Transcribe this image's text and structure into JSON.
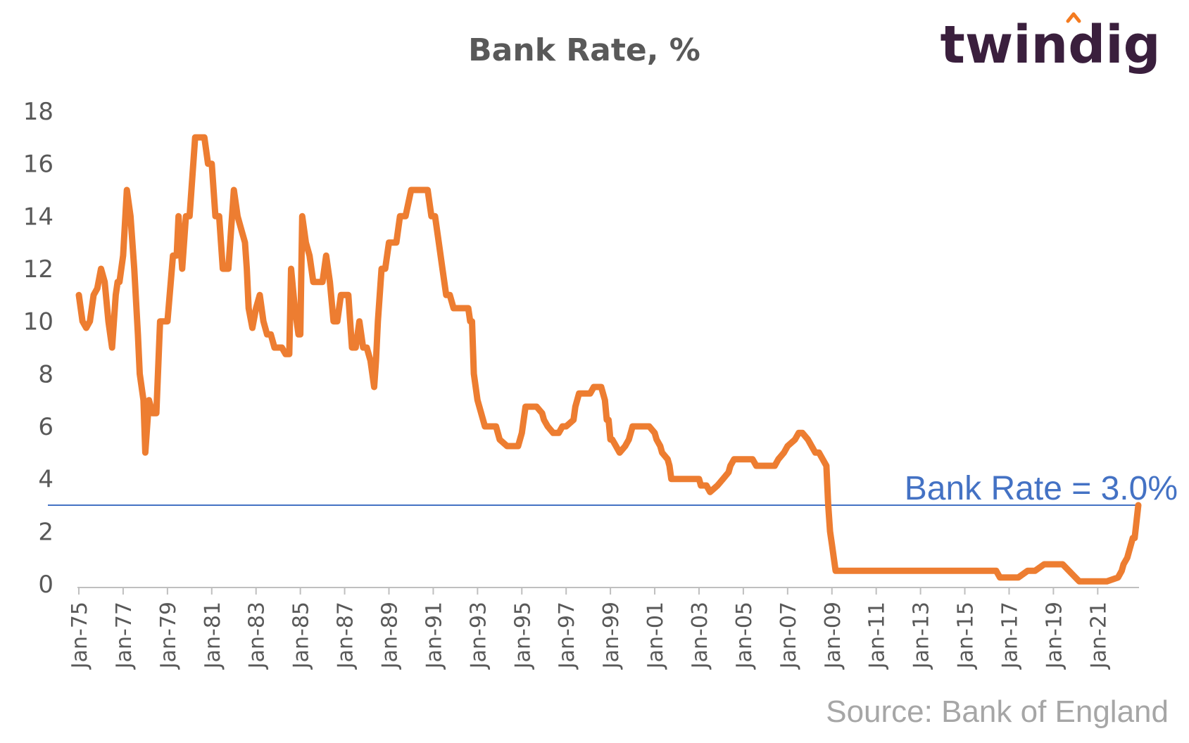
{
  "chart_data": {
    "type": "line",
    "title": "Bank Rate, %",
    "xlabel": "",
    "ylabel": "",
    "ylim": [
      0,
      18
    ],
    "yticks": [
      0,
      2,
      4,
      6,
      8,
      10,
      12,
      14,
      16,
      18
    ],
    "xtick_labels": [
      "Jan-75",
      "Jan-77",
      "Jan-79",
      "Jan-81",
      "Jan-83",
      "Jan-85",
      "Jan-87",
      "Jan-89",
      "Jan-91",
      "Jan-93",
      "Jan-95",
      "Jan-97",
      "Jan-99",
      "Jan-01",
      "Jan-03",
      "Jan-05",
      "Jan-07",
      "Jan-09",
      "Jan-11",
      "Jan-13",
      "Jan-15",
      "Jan-17",
      "Jan-19",
      "Jan-21"
    ],
    "xlim": [
      "1975-01",
      "2022-11"
    ],
    "grid": false,
    "line_color": "#ed7d31",
    "reference_line": {
      "value": 3.0,
      "label": "Bank Rate = 3.0%",
      "color": "#4472c4"
    },
    "series": [
      {
        "name": "",
        "x": [
          "1975-01",
          "1975-03",
          "1975-05",
          "1975-07",
          "1975-09",
          "1975-11",
          "1976-01",
          "1976-03",
          "1976-05",
          "1976-07",
          "1976-09",
          "1976-10",
          "1976-11",
          "1977-01",
          "1977-03",
          "1977-05",
          "1977-07",
          "1977-09",
          "1977-10",
          "1977-12",
          "1978-01",
          "1978-03",
          "1978-05",
          "1978-07",
          "1978-09",
          "1978-11",
          "1979-01",
          "1979-04",
          "1979-06",
          "1979-07",
          "1979-09",
          "1979-11",
          "1980-01",
          "1980-04",
          "1980-07",
          "1980-09",
          "1980-11",
          "1981-01",
          "1981-03",
          "1981-05",
          "1981-07",
          "1981-09",
          "1981-10",
          "1981-11",
          "1982-01",
          "1982-03",
          "1982-05",
          "1982-07",
          "1982-08",
          "1982-09",
          "1982-11",
          "1983-01",
          "1983-03",
          "1983-05",
          "1983-07",
          "1983-09",
          "1983-11",
          "1984-01",
          "1984-03",
          "1984-05",
          "1984-07",
          "1984-08",
          "1984-10",
          "1984-12",
          "1985-01",
          "1985-02",
          "1985-04",
          "1985-06",
          "1985-08",
          "1985-10",
          "1985-12",
          "1986-01",
          "1986-03",
          "1986-05",
          "1986-07",
          "1986-09",
          "1986-11",
          "1987-01",
          "1987-03",
          "1987-05",
          "1987-07",
          "1987-09",
          "1987-11",
          "1988-01",
          "1988-03",
          "1988-05",
          "1988-06",
          "1988-07",
          "1988-09",
          "1988-11",
          "1989-01",
          "1989-05",
          "1989-07",
          "1989-10",
          "1990-01",
          "1990-04",
          "1990-07",
          "1990-10",
          "1990-12",
          "1991-02",
          "1991-04",
          "1991-06",
          "1991-08",
          "1991-10",
          "1991-12",
          "1992-03",
          "1992-06",
          "1992-08",
          "1992-09",
          "1992-10",
          "1992-11",
          "1993-01",
          "1993-05",
          "1993-11",
          "1994-01",
          "1994-05",
          "1994-09",
          "1994-11",
          "1995-01",
          "1995-03",
          "1995-06",
          "1995-09",
          "1995-12",
          "1996-01",
          "1996-03",
          "1996-06",
          "1996-09",
          "1996-11",
          "1997-01",
          "1997-05",
          "1997-06",
          "1997-07",
          "1997-08",
          "1997-11",
          "1998-02",
          "1998-04",
          "1998-06",
          "1998-08",
          "1998-10",
          "1998-11",
          "1998-12",
          "1999-01",
          "1999-02",
          "1999-04",
          "1999-06",
          "1999-09",
          "1999-11",
          "2000-01",
          "2000-02",
          "2000-06",
          "2000-10",
          "2001-01",
          "2001-02",
          "2001-04",
          "2001-05",
          "2001-08",
          "2001-09",
          "2001-10",
          "2001-11",
          "2002-06",
          "2003-01",
          "2003-02",
          "2003-05",
          "2003-07",
          "2003-11",
          "2004-02",
          "2004-05",
          "2004-06",
          "2004-08",
          "2004-12",
          "2005-06",
          "2005-08",
          "2005-12",
          "2006-06",
          "2006-08",
          "2006-11",
          "2007-01",
          "2007-05",
          "2007-07",
          "2007-09",
          "2007-12",
          "2008-02",
          "2008-04",
          "2008-06",
          "2008-10",
          "2008-11",
          "2008-12",
          "2009-01",
          "2009-02",
          "2009-03",
          "2010-06",
          "2012-06",
          "2014-06",
          "2016-06",
          "2016-08",
          "2017-06",
          "2017-11",
          "2018-03",
          "2018-08",
          "2019-06",
          "2020-03",
          "2020-05",
          "2021-06",
          "2021-12",
          "2022-02",
          "2022-03",
          "2022-05",
          "2022-06",
          "2022-08",
          "2022-09",
          "2022-11"
        ],
        "y": [
          11.0,
          10.0,
          9.75,
          10.0,
          11.0,
          11.25,
          12.0,
          11.5,
          10.0,
          9.0,
          11.0,
          11.5,
          11.5,
          12.5,
          15.0,
          14.0,
          12.0,
          9.5,
          8.0,
          7.0,
          5.0,
          7.0,
          6.5,
          6.5,
          10.0,
          10.0,
          10.0,
          12.5,
          12.5,
          14.0,
          12.0,
          14.0,
          14.0,
          17.0,
          17.0,
          17.0,
          16.0,
          16.0,
          14.0,
          14.0,
          12.0,
          12.0,
          12.0,
          13.0,
          15.0,
          14.0,
          13.5,
          13.0,
          12.0,
          10.5,
          9.75,
          10.5,
          11.0,
          10.0,
          9.5,
          9.5,
          9.0,
          9.0,
          9.0,
          8.75,
          8.75,
          12.0,
          10.5,
          9.5,
          9.5,
          14.0,
          13.0,
          12.5,
          11.5,
          11.5,
          11.5,
          11.5,
          12.5,
          11.5,
          10.0,
          10.0,
          11.0,
          11.0,
          11.0,
          9.0,
          9.0,
          10.0,
          9.0,
          9.0,
          8.5,
          7.5,
          8.5,
          10.0,
          12.0,
          12.0,
          13.0,
          13.0,
          14.0,
          14.0,
          15.0,
          15.0,
          15.0,
          15.0,
          14.0,
          14.0,
          13.0,
          12.0,
          11.0,
          11.0,
          10.5,
          10.5,
          10.5,
          10.5,
          10.0,
          10.0,
          8.0,
          7.0,
          6.0,
          6.0,
          5.5,
          5.25,
          5.25,
          5.25,
          5.75,
          6.75,
          6.75,
          6.75,
          6.5,
          6.25,
          6.0,
          5.75,
          5.75,
          6.0,
          6.0,
          6.25,
          6.75,
          7.0,
          7.25,
          7.25,
          7.25,
          7.5,
          7.5,
          7.5,
          7.0,
          6.25,
          6.25,
          5.5,
          5.5,
          5.25,
          5.0,
          5.25,
          5.5,
          6.0,
          6.0,
          6.0,
          6.0,
          5.75,
          5.5,
          5.25,
          5.0,
          4.75,
          4.5,
          4.0,
          4.0,
          4.0,
          4.0,
          3.75,
          3.75,
          3.5,
          3.75,
          4.0,
          4.25,
          4.5,
          4.75,
          4.75,
          4.75,
          4.5,
          4.5,
          4.5,
          4.75,
          5.0,
          5.25,
          5.5,
          5.75,
          5.75,
          5.5,
          5.25,
          5.0,
          5.0,
          4.5,
          3.0,
          2.0,
          1.5,
          1.0,
          0.5,
          0.5,
          0.5,
          0.5,
          0.5,
          0.25,
          0.25,
          0.5,
          0.5,
          0.75,
          0.75,
          0.1,
          0.1,
          0.1,
          0.25,
          0.5,
          0.75,
          1.0,
          1.25,
          1.75,
          1.75,
          3.0
        ]
      }
    ],
    "source": "Source: Bank of England",
    "logo_text": "twindig"
  }
}
